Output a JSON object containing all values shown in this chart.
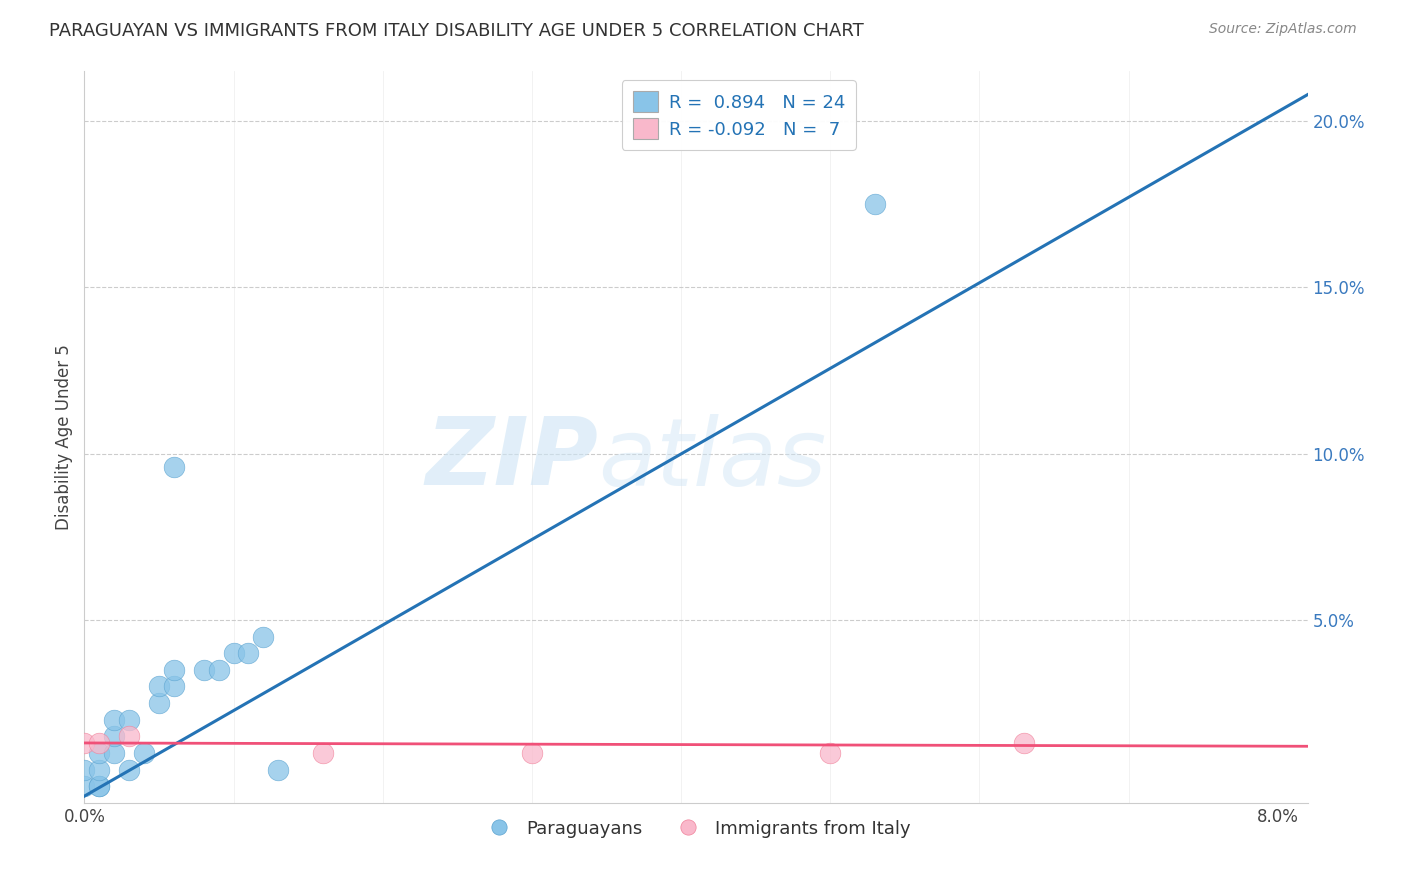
{
  "title": "PARAGUAYAN VS IMMIGRANTS FROM ITALY DISABILITY AGE UNDER 5 CORRELATION CHART",
  "source": "Source: ZipAtlas.com",
  "ylabel": "Disability Age Under 5",
  "xlim": [
    0.0,
    0.082
  ],
  "ylim": [
    -0.005,
    0.215
  ],
  "xtick_positions": [
    0.0,
    0.01,
    0.02,
    0.03,
    0.04,
    0.05,
    0.06,
    0.07,
    0.08
  ],
  "xticklabels": [
    "0.0%",
    "",
    "",
    "",
    "",
    "",
    "",
    "",
    "8.0%"
  ],
  "ytick_right_positions": [
    0.0,
    0.05,
    0.1,
    0.15,
    0.2
  ],
  "ytick_right_labels": [
    "",
    "5.0%",
    "10.0%",
    "15.0%",
    "20.0%"
  ],
  "paraguayan_x": [
    0.0,
    0.0,
    0.001,
    0.001,
    0.001,
    0.001,
    0.002,
    0.002,
    0.002,
    0.003,
    0.003,
    0.004,
    0.005,
    0.005,
    0.006,
    0.006,
    0.008,
    0.009,
    0.01,
    0.011,
    0.012,
    0.013,
    0.006,
    0.053
  ],
  "paraguayan_y": [
    0.0,
    0.005,
    0.0,
    0.0,
    0.005,
    0.01,
    0.01,
    0.015,
    0.02,
    0.005,
    0.02,
    0.01,
    0.025,
    0.03,
    0.03,
    0.035,
    0.035,
    0.035,
    0.04,
    0.04,
    0.045,
    0.005,
    0.096,
    0.175
  ],
  "italy_x": [
    0.0,
    0.001,
    0.003,
    0.016,
    0.03,
    0.05,
    0.063
  ],
  "italy_y": [
    0.013,
    0.013,
    0.015,
    0.01,
    0.01,
    0.01,
    0.013
  ],
  "blue_line_x": [
    0.0,
    0.082
  ],
  "blue_line_y": [
    -0.003,
    0.208
  ],
  "pink_line_x": [
    0.0,
    0.082
  ],
  "pink_line_y": [
    0.013,
    0.012
  ],
  "blue_R": 0.894,
  "blue_N": 24,
  "pink_R": -0.092,
  "pink_N": 7,
  "blue_color": "#89c4e8",
  "blue_edge_color": "#5ba3d0",
  "blue_line_color": "#2473b5",
  "pink_color": "#f9b8cb",
  "pink_edge_color": "#f08099",
  "pink_line_color": "#f05078",
  "legend_labels": [
    "Paraguayans",
    "Immigrants from Italy"
  ],
  "watermark_zip": "ZIP",
  "watermark_atlas": "atlas",
  "background_color": "#ffffff",
  "grid_color": "#cccccc",
  "grid_style": "--",
  "title_fontsize": 13,
  "source_fontsize": 10,
  "axis_label_fontsize": 12,
  "tick_fontsize": 12,
  "legend_fontsize": 13
}
